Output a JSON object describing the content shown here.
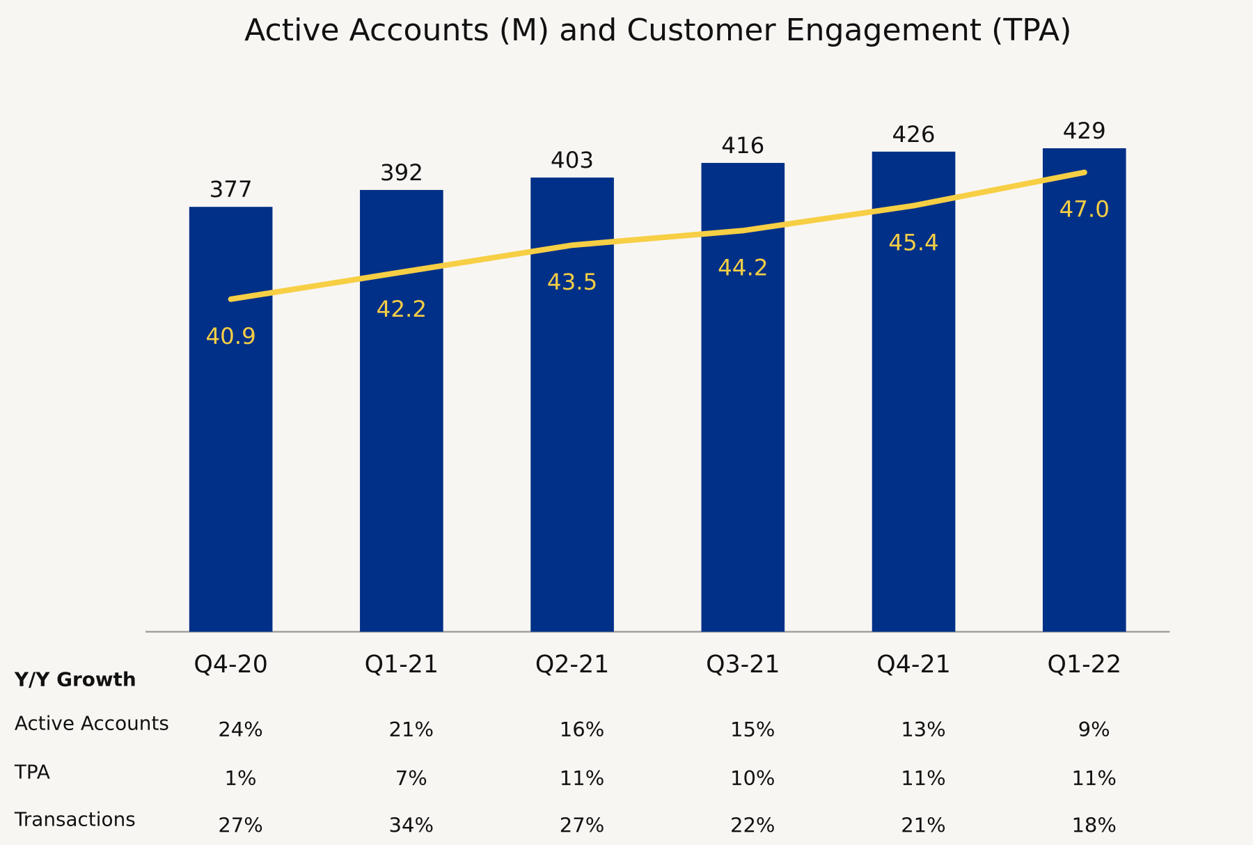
{
  "chart_data": {
    "type": "bar",
    "title": "Active Accounts (M) and Customer Engagement (TPA)",
    "categories": [
      "Q4-20",
      "Q1-21",
      "Q2-21",
      "Q3-21",
      "Q4-21",
      "Q1-22"
    ],
    "series": [
      {
        "name": "Active Accounts (M)",
        "type": "bar",
        "color": "#003087",
        "values": [
          377,
          392,
          403,
          416,
          426,
          429
        ]
      },
      {
        "name": "TPA",
        "type": "line",
        "axis": "y2",
        "color": "#f7cf45",
        "values": [
          40.9,
          42.2,
          43.5,
          44.2,
          45.4,
          47.0
        ],
        "value_labels": [
          "40.9",
          "42.2",
          "43.5",
          "44.2",
          "45.4",
          "47.0"
        ]
      }
    ],
    "ylim": [
      0,
      450
    ],
    "y2lim": [
      24.9,
      49.3
    ],
    "growth_table": {
      "title": "Y/Y Growth",
      "rows": [
        {
          "label": "Active Accounts",
          "values": [
            "24%",
            "21%",
            "16%",
            "15%",
            "13%",
            "9%"
          ]
        },
        {
          "label": "TPA",
          "values": [
            "1%",
            "7%",
            "11%",
            "10%",
            "11%",
            "11%"
          ]
        },
        {
          "label": "Transactions",
          "values": [
            "27%",
            "34%",
            "27%",
            "22%",
            "21%",
            "18%"
          ]
        }
      ]
    }
  }
}
